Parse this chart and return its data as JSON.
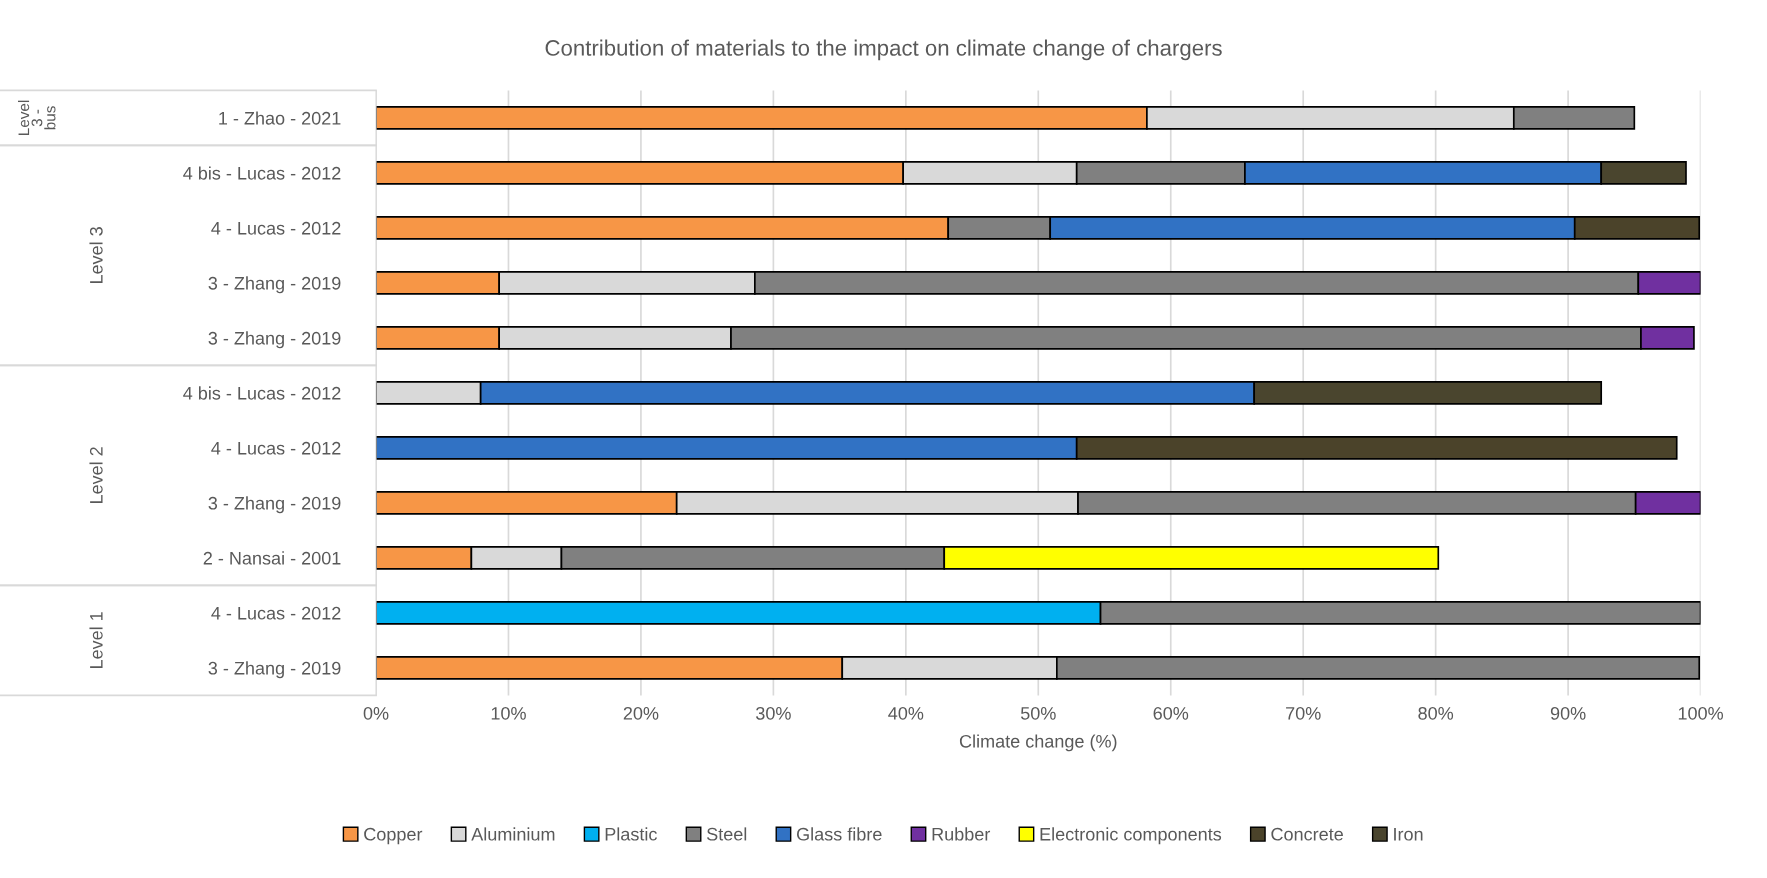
{
  "chart_data": {
    "type": "bar",
    "orientation": "horizontal",
    "stacked": true,
    "title": "Contribution of materials to the impact on climate change of chargers",
    "xlabel": "Climate change (%)",
    "categories": [
      "1 - Zhao - 2021",
      "4 bis - Lucas - 2012",
      "4 - Lucas - 2012",
      "3 - Zhang - 2019",
      "3 - Zhang - 2019",
      "4 bis - Lucas - 2012",
      "4 - Lucas - 2012",
      "3 - Zhang - 2019",
      "2 - Nansai - 2001",
      "4 - Lucas - 2012",
      "3 - Zhang - 2019"
    ],
    "series": [
      {
        "name": "Copper",
        "color": "#f79646",
        "values": [
          58.2,
          39.8,
          43.2,
          9.3,
          9.3,
          null,
          null,
          22.7,
          7.2,
          null,
          35.2
        ]
      },
      {
        "name": "Aluminium",
        "color": "#d9d9d9",
        "values": [
          27.7,
          13.1,
          null,
          19.3,
          17.5,
          7.9,
          null,
          30.3,
          6.8,
          null,
          16.2
        ]
      },
      {
        "name": "Plastic",
        "color": "#00b0f0",
        "values": [
          null,
          null,
          null,
          null,
          null,
          null,
          null,
          null,
          null,
          54.7,
          null
        ]
      },
      {
        "name": "Steel",
        "color": "#808080",
        "values": [
          9.1,
          12.7,
          7.7,
          66.7,
          68.7,
          null,
          null,
          42.1,
          28.9,
          45.3,
          48.5
        ]
      },
      {
        "name": "Glass fibre",
        "color": "#3172c4",
        "values": [
          null,
          26.9,
          39.6,
          null,
          null,
          58.4,
          52.9,
          null,
          null,
          null,
          null
        ]
      },
      {
        "name": "Rubber",
        "color": "#7030a0",
        "values": [
          null,
          null,
          null,
          4.7,
          4.0,
          null,
          null,
          4.9,
          null,
          null,
          null
        ]
      },
      {
        "name": "Electronic components",
        "color": "#ffff00",
        "values": [
          null,
          null,
          null,
          null,
          null,
          null,
          null,
          null,
          37.3,
          null,
          null
        ]
      },
      {
        "name": "Concrete",
        "color": "#4b432a",
        "values": [
          null,
          null,
          9.4,
          null,
          null,
          null,
          45.3,
          null,
          null,
          null,
          null
        ]
      },
      {
        "name": "Iron",
        "color": "#4a452e",
        "values": [
          null,
          6.4,
          null,
          null,
          null,
          26.2,
          null,
          null,
          null,
          null,
          null
        ]
      }
    ],
    "annotations": [
      "Level 3 - bus",
      "Level 3",
      "Level 2",
      "Level 1"
    ],
    "xlim": [
      0,
      100
    ],
    "xticks": [
      {
        "value": 0,
        "label": "0%"
      },
      {
        "value": 10,
        "label": "10%"
      },
      {
        "value": 20,
        "label": "20%"
      },
      {
        "value": 30,
        "label": "30%"
      },
      {
        "value": 40,
        "label": "40%"
      },
      {
        "value": 50,
        "label": "50%"
      },
      {
        "value": 60,
        "label": "60%"
      },
      {
        "value": 70,
        "label": "70%"
      },
      {
        "value": 80,
        "label": "80%"
      },
      {
        "value": 90,
        "label": "90%"
      },
      {
        "value": 100,
        "label": "100%"
      }
    ],
    "grid": "x",
    "legend": "bottom"
  }
}
